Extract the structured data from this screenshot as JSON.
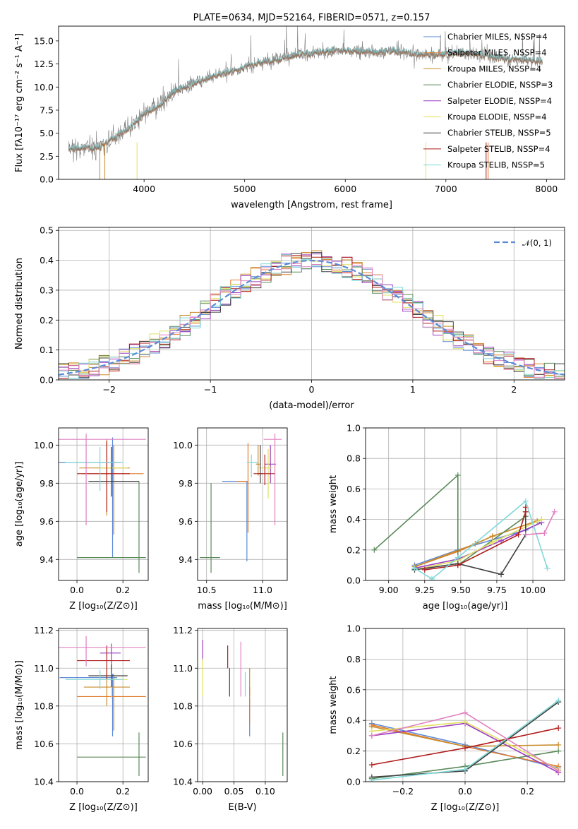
{
  "colors": {
    "ch_miles": "#5b8ad6",
    "sa_miles": "#e07b2c",
    "kr_miles": "#c98b2c",
    "ch_elodie": "#5a8a5a",
    "sa_elodie": "#9b3fbf",
    "kr_elodie": "#e0e060",
    "ch_stelib": "#404040",
    "sa_stelib": "#b01c1c",
    "kr_stelib": "#7fd8d8",
    "extra_pink": "#e080c0",
    "data_grey": "#808080",
    "normal": "#5b8ad6"
  },
  "chart_data": [
    {
      "id": "spectrum",
      "type": "line",
      "title": "PLATE=0634, MJD=52164, FIBERID=0571, z=0.157",
      "xlabel": "wavelength [Angstrom, rest frame]",
      "ylabel": "Flux [fλ10⁻¹⁷ erg cm⁻² s⁻¹ A⁻¹]",
      "xlim": [
        3150,
        8180
      ],
      "ylim": [
        0,
        16.6
      ],
      "xticks": [
        "4000",
        "5000",
        "6000",
        "7000",
        "8000"
      ],
      "yticks": [
        "0.0",
        "2.5",
        "5.0",
        "7.5",
        "10.0",
        "12.5",
        "15.0"
      ],
      "grid": false,
      "legend_position": "top-right",
      "legend": [
        "Chabrier MILES, NSSP=4",
        "Salpeter MILES, NSSP=4",
        "Kroupa MILES, NSSP=4",
        "Chabrier ELODIE, NSSP=3",
        "Salpeter ELODIE, NSSP=4",
        "Kroupa ELODIE, NSSP=4",
        "Chabrier STELIB, NSSP=5",
        "Salpeter STELIB, NSSP=4",
        "Kroupa STELIB, NSSP=5"
      ],
      "continuum": {
        "x": [
          3250,
          3400,
          3550,
          3700,
          3850,
          4000,
          4150,
          4300,
          4500,
          4700,
          4900,
          5100,
          5300,
          5500,
          5700,
          5900,
          6100,
          6300,
          6500,
          6700,
          6900,
          7100,
          7300,
          7500,
          7700,
          7950
        ],
        "y": [
          3.3,
          3.4,
          3.5,
          4.5,
          5.5,
          7.0,
          8.0,
          9.5,
          10.5,
          11.2,
          11.8,
          12.5,
          13.0,
          13.4,
          13.7,
          14.0,
          13.9,
          13.8,
          13.9,
          13.6,
          13.5,
          13.7,
          13.6,
          13.2,
          13.0,
          12.8
        ]
      }
    },
    {
      "id": "residuals",
      "type": "line",
      "xlabel": "(data-model)/error",
      "ylabel": "Normed distribution",
      "xlim": [
        -2.5,
        2.5
      ],
      "ylim": [
        0,
        0.51
      ],
      "xticks": [
        "−2",
        "−1",
        "0",
        "1",
        "2"
      ],
      "yticks": [
        "0.0",
        "0.1",
        "0.2",
        "0.3",
        "0.4",
        "0.5"
      ],
      "grid": true,
      "legend_position": "top-right",
      "legend": [
        "𝒩(0, 1)"
      ],
      "bin_width": 0.1
    },
    {
      "id": "age_vs_Z",
      "type": "scatter",
      "xlabel": "Z [log₁₀(Z/Z⊙)]",
      "ylabel": "age  [log₁₀(age/yr)]",
      "xlim": [
        -0.08,
        0.31
      ],
      "ylim": [
        9.29,
        10.09
      ],
      "xticks": [
        "0.0",
        "0.2"
      ],
      "yticks": [
        "9.4",
        "9.6",
        "9.8",
        "10.0"
      ],
      "grid": true,
      "points": [
        {
          "x": 0.155,
          "y": 9.91,
          "ex": [
            -0.24,
            0.02
          ],
          "ey": [
            -0.5,
            0.13
          ],
          "c": "ch_miles"
        },
        {
          "x": 0.16,
          "y": 9.85,
          "ex": [
            -0.14,
            0.13
          ],
          "ey": [
            -0.32,
            0.15
          ],
          "c": "sa_miles"
        },
        {
          "x": 0.13,
          "y": 9.88,
          "ex": [
            -0.12,
            0.1
          ],
          "ey": [
            -0.25,
            0.15
          ],
          "c": "kr_miles"
        },
        {
          "x": 0.27,
          "y": 9.41,
          "ex": [
            -0.27,
            0.03
          ],
          "ey": [
            -0.08,
            0.4
          ],
          "c": "ch_elodie"
        },
        {
          "x": 0.15,
          "y": 9.91,
          "ex": [
            -0.05,
            0.04
          ],
          "ey": [
            -0.1,
            0.08
          ],
          "c": "sa_elodie"
        },
        {
          "x": 0.15,
          "y": 9.88,
          "ex": [
            -0.05,
            0.07
          ],
          "ey": [
            -0.12,
            0.1
          ],
          "c": "kr_elodie"
        },
        {
          "x": 0.15,
          "y": 9.81,
          "ex": [
            -0.1,
            0.12
          ],
          "ey": [
            -0.08,
            0.18
          ],
          "c": "ch_stelib"
        },
        {
          "x": 0.13,
          "y": 9.85,
          "ex": [
            -0.13,
            0.1
          ],
          "ey": [
            -0.2,
            0.17
          ],
          "c": "sa_stelib"
        },
        {
          "x": 0.1,
          "y": 9.91,
          "ex": [
            -0.15,
            0.1
          ],
          "ey": [
            -0.15,
            0.08
          ],
          "c": "kr_stelib"
        },
        {
          "x": 0.04,
          "y": 10.03,
          "ex": [
            -0.13,
            0.26
          ],
          "ey": [
            -0.45,
            0.03
          ],
          "c": "extra_pink"
        }
      ]
    },
    {
      "id": "age_vs_mass",
      "type": "scatter",
      "xlabel": "mass [log₁₀(M/M⊙)]",
      "xlim": [
        10.42,
        11.22
      ],
      "ylim": [
        9.29,
        10.09
      ],
      "xticks": [
        "10.5",
        "11.0"
      ],
      "yticks": [
        "9.4",
        "9.6",
        "9.8",
        "10.0"
      ],
      "grid": true,
      "points": [
        {
          "x": 10.86,
          "y": 9.81,
          "ex": [
            -0.22,
            0.01
          ],
          "ey": [
            -0.42,
            0.0
          ],
          "c": "ch_miles"
        },
        {
          "x": 10.87,
          "y": 9.81,
          "ex": [
            -0.1,
            0.0
          ],
          "ey": [
            -0.27,
            0.2
          ],
          "c": "sa_miles"
        },
        {
          "x": 10.96,
          "y": 9.9,
          "ex": [
            -0.02,
            0.02
          ],
          "ey": [
            -0.06,
            0.1
          ],
          "c": "kr_miles"
        },
        {
          "x": 10.54,
          "y": 9.41,
          "ex": [
            -0.1,
            0.08
          ],
          "ey": [
            -0.08,
            0.39
          ],
          "c": "ch_elodie"
        },
        {
          "x": 11.07,
          "y": 9.9,
          "ex": [
            -0.05,
            0.05
          ],
          "ey": [
            -0.1,
            0.1
          ],
          "c": "sa_elodie"
        },
        {
          "x": 11.05,
          "y": 9.88,
          "ex": [
            -0.08,
            0.04
          ],
          "ey": [
            -0.16,
            0.1
          ],
          "c": "kr_elodie"
        },
        {
          "x": 10.98,
          "y": 9.85,
          "ex": [
            -0.02,
            0.02
          ],
          "ey": [
            -0.05,
            0.15
          ],
          "c": "ch_stelib"
        },
        {
          "x": 11.02,
          "y": 9.85,
          "ex": [
            -0.1,
            0.09
          ],
          "ey": [
            -0.06,
            0.1
          ],
          "c": "sa_stelib"
        },
        {
          "x": 10.9,
          "y": 9.91,
          "ex": [
            -0.04,
            0.06
          ],
          "ey": [
            -0.08,
            0.04
          ],
          "c": "kr_stelib"
        },
        {
          "x": 11.11,
          "y": 10.03,
          "ex": [
            -0.1,
            0.06
          ],
          "ey": [
            -0.45,
            0.03
          ],
          "c": "extra_pink"
        }
      ]
    },
    {
      "id": "weight_vs_age",
      "type": "line",
      "xlabel": "age  [log₁₀(age/yr)]",
      "ylabel": "mass weight",
      "xlim": [
        8.84,
        10.22
      ],
      "ylim": [
        0,
        1.0
      ],
      "xticks": [
        "9.00",
        "9.25",
        "9.50",
        "9.75",
        "10.00"
      ],
      "yticks": [
        "0.0",
        "0.2",
        "0.4",
        "0.6",
        "0.8",
        "1.0"
      ],
      "grid": true,
      "series": [
        {
          "c": "ch_miles",
          "x": [
            9.18,
            9.48,
            9.95,
            10.06
          ],
          "y": [
            0.1,
            0.2,
            0.33,
            0.38
          ]
        },
        {
          "c": "sa_miles",
          "x": [
            9.18,
            9.48,
            9.72,
            10.06
          ],
          "y": [
            0.09,
            0.19,
            0.29,
            0.4
          ]
        },
        {
          "c": "kr_miles",
          "x": [
            9.18,
            9.6,
            9.72,
            10.03
          ],
          "y": [
            0.09,
            0.24,
            0.29,
            0.39
          ]
        },
        {
          "c": "ch_elodie",
          "x": [
            8.9,
            9.48,
            9.48,
            9.95
          ],
          "y": [
            0.2,
            0.69,
            0.1,
            0.42
          ]
        },
        {
          "c": "sa_elodie",
          "x": [
            9.18,
            9.48,
            9.78,
            10.06
          ],
          "y": [
            0.08,
            0.14,
            0.26,
            0.38
          ]
        },
        {
          "c": "kr_elodie",
          "x": [
            9.18,
            9.48,
            9.72,
            10.06
          ],
          "y": [
            0.07,
            0.13,
            0.25,
            0.4
          ]
        },
        {
          "c": "ch_stelib",
          "x": [
            9.18,
            9.48,
            9.78,
            9.95,
            9.95
          ],
          "y": [
            0.07,
            0.11,
            0.04,
            0.3,
            0.45
          ]
        },
        {
          "c": "sa_stelib",
          "x": [
            9.25,
            9.48,
            9.9,
            9.95,
            9.95
          ],
          "y": [
            0.07,
            0.1,
            0.3,
            0.45,
            0.48
          ]
        },
        {
          "c": "kr_stelib",
          "x": [
            9.18,
            9.3,
            9.48,
            9.95,
            10.1
          ],
          "y": [
            0.08,
            0.01,
            0.15,
            0.52,
            0.08
          ]
        },
        {
          "c": "extra_pink",
          "x": [
            9.95,
            10.08,
            10.15
          ],
          "y": [
            0.3,
            0.31,
            0.45
          ]
        }
      ]
    },
    {
      "id": "mass_vs_Z",
      "type": "scatter",
      "xlabel": "Z [log₁₀(Z/Z⊙)]",
      "ylabel": "mass [log₁₀(M/M⊙)]",
      "xlim": [
        -0.08,
        0.31
      ],
      "ylim": [
        10.4,
        11.21
      ],
      "xticks": [
        "0.0",
        "0.2"
      ],
      "yticks": [
        "10.4",
        "10.6",
        "10.8",
        "11.0",
        "11.2"
      ],
      "grid": true,
      "points": [
        {
          "x": 0.155,
          "y": 10.95,
          "ex": [
            -0.23,
            0.02
          ],
          "ey": [
            -0.31,
            0.02
          ],
          "c": "ch_miles"
        },
        {
          "x": 0.16,
          "y": 10.85,
          "ex": [
            -0.16,
            0.14
          ],
          "ey": [
            -0.18,
            0.12
          ],
          "c": "sa_miles"
        },
        {
          "x": 0.13,
          "y": 10.9,
          "ex": [
            -0.1,
            0.1
          ],
          "ey": [
            -0.1,
            0.1
          ],
          "c": "kr_miles"
        },
        {
          "x": 0.27,
          "y": 10.53,
          "ex": [
            -0.27,
            0.03
          ],
          "ey": [
            -0.1,
            0.13
          ],
          "c": "ch_elodie"
        },
        {
          "x": 0.15,
          "y": 11.08,
          "ex": [
            -0.05,
            0.04
          ],
          "ey": [
            -0.1,
            0.05
          ],
          "c": "sa_elodie"
        },
        {
          "x": 0.15,
          "y": 10.94,
          "ex": [
            -0.05,
            0.07
          ],
          "ey": [
            -0.1,
            0.08
          ],
          "c": "kr_elodie"
        },
        {
          "x": 0.15,
          "y": 10.96,
          "ex": [
            -0.1,
            0.07
          ],
          "ey": [
            -0.06,
            0.06
          ],
          "c": "ch_stelib"
        },
        {
          "x": 0.13,
          "y": 11.04,
          "ex": [
            -0.13,
            0.1
          ],
          "ey": [
            -0.1,
            0.08
          ],
          "c": "sa_stelib"
        },
        {
          "x": 0.1,
          "y": 10.94,
          "ex": [
            -0.15,
            0.1
          ],
          "ey": [
            -0.05,
            0.05
          ],
          "c": "kr_stelib"
        },
        {
          "x": 0.04,
          "y": 11.11,
          "ex": [
            -0.13,
            0.26
          ],
          "ey": [
            -0.1,
            0.06
          ],
          "c": "extra_pink"
        }
      ]
    },
    {
      "id": "mass_vs_EBV",
      "type": "scatter",
      "xlabel": "E(B-V)",
      "xlim": [
        -0.008,
        0.135
      ],
      "ylim": [
        10.4,
        11.21
      ],
      "xticks": [
        "0.00",
        "0.05",
        "0.10"
      ],
      "yticks": [
        "10.4",
        "10.6",
        "10.8",
        "11.0",
        "11.2"
      ],
      "grid": true,
      "points": [
        {
          "x": 0.075,
          "y": 10.78,
          "ex": [
            0,
            0
          ],
          "ey": [
            -0.14,
            0.06
          ],
          "c": "ch_miles"
        },
        {
          "x": 0.075,
          "y": 10.8,
          "ex": [
            0,
            0
          ],
          "ey": [
            -0.1,
            0.1
          ],
          "c": "sa_miles"
        },
        {
          "x": 0.075,
          "y": 10.95,
          "ex": [
            0,
            0
          ],
          "ey": [
            -0.1,
            0.05
          ],
          "c": "kr_miles"
        },
        {
          "x": 0.128,
          "y": 10.53,
          "ex": [
            0,
            0
          ],
          "ey": [
            -0.1,
            0.13
          ],
          "c": "ch_elodie"
        },
        {
          "x": 0.0,
          "y": 11.1,
          "ex": [
            0,
            0
          ],
          "ey": [
            -0.06,
            0.05
          ],
          "c": "sa_elodie"
        },
        {
          "x": 0.0,
          "y": 10.95,
          "ex": [
            0,
            0
          ],
          "ey": [
            -0.1,
            0.1
          ],
          "c": "kr_elodie"
        },
        {
          "x": 0.043,
          "y": 10.93,
          "ex": [
            0,
            0
          ],
          "ey": [
            -0.08,
            0.07
          ],
          "c": "ch_stelib"
        },
        {
          "x": 0.04,
          "y": 11.05,
          "ex": [
            0,
            0
          ],
          "ey": [
            -0.05,
            0.07
          ],
          "c": "sa_stelib"
        },
        {
          "x": 0.068,
          "y": 10.93,
          "ex": [
            0,
            0
          ],
          "ey": [
            -0.08,
            0.05
          ],
          "c": "kr_stelib"
        },
        {
          "x": 0.061,
          "y": 11.04,
          "ex": [
            0,
            0
          ],
          "ey": [
            -0.19,
            0.1
          ],
          "c": "extra_pink"
        }
      ]
    },
    {
      "id": "weight_vs_Z",
      "type": "line",
      "xlabel": "Z [log₁₀(Z/Z⊙)]",
      "ylabel": "mass weight",
      "xlim": [
        -0.32,
        0.32
      ],
      "ylim": [
        0,
        1.0
      ],
      "xticks": [
        "−0.2",
        "0.0",
        "0.2"
      ],
      "yticks": [
        "0.0",
        "0.2",
        "0.4",
        "0.6",
        "0.8",
        "1.0"
      ],
      "grid": true,
      "series": [
        {
          "c": "ch_miles",
          "x": [
            -0.3,
            0.0,
            0.3
          ],
          "y": [
            0.38,
            0.24,
            0.09
          ]
        },
        {
          "c": "sa_miles",
          "x": [
            -0.3,
            0.0,
            0.3
          ],
          "y": [
            0.37,
            0.23,
            0.1
          ]
        },
        {
          "c": "kr_miles",
          "x": [
            -0.3,
            0.0,
            0.3
          ],
          "y": [
            0.36,
            0.23,
            0.24
          ]
        },
        {
          "c": "ch_elodie",
          "x": [
            -0.3,
            0.0,
            0.3
          ],
          "y": [
            0.02,
            0.1,
            0.2
          ]
        },
        {
          "c": "sa_elodie",
          "x": [
            -0.3,
            0.0,
            0.3
          ],
          "y": [
            0.3,
            0.38,
            0.06
          ]
        },
        {
          "c": "kr_elodie",
          "x": [
            -0.3,
            0.0,
            0.3
          ],
          "y": [
            0.33,
            0.39,
            0.08
          ]
        },
        {
          "c": "ch_stelib",
          "x": [
            -0.3,
            0.0,
            0.3
          ],
          "y": [
            0.03,
            0.07,
            0.52
          ]
        },
        {
          "c": "sa_stelib",
          "x": [
            -0.3,
            0.0,
            0.3
          ],
          "y": [
            0.11,
            0.22,
            0.35
          ]
        },
        {
          "c": "kr_stelib",
          "x": [
            -0.3,
            0.0,
            0.3
          ],
          "y": [
            0.01,
            0.08,
            0.53
          ]
        },
        {
          "c": "extra_pink",
          "x": [
            -0.3,
            0.0,
            0.3
          ],
          "y": [
            0.3,
            0.45,
            0.07
          ]
        }
      ]
    }
  ]
}
